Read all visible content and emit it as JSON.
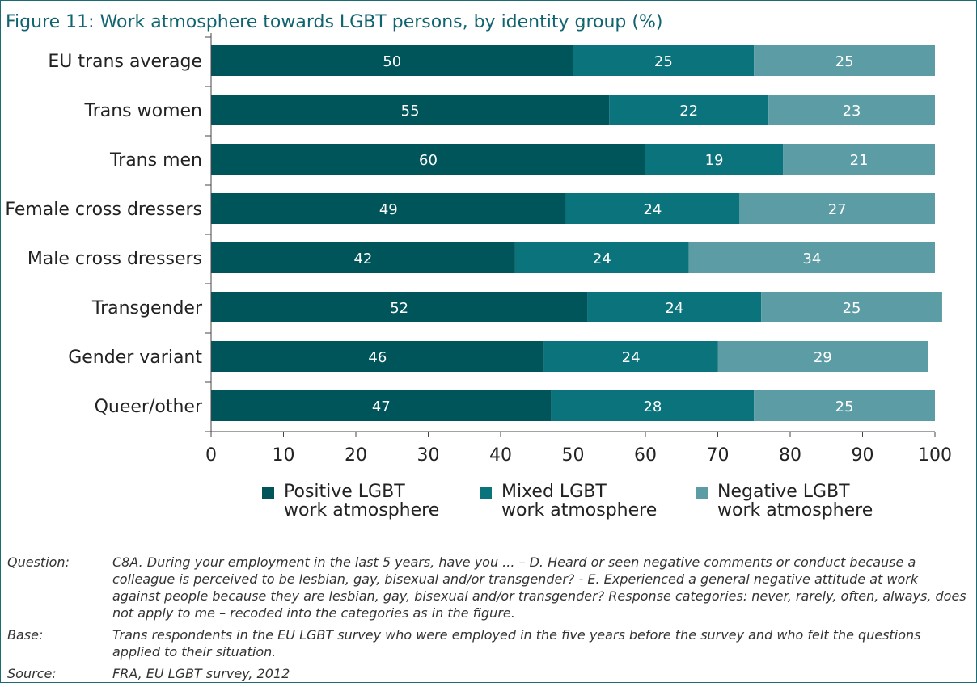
{
  "figure": {
    "title": "Figure 11:  Work atmosphere towards LGBT persons, by identity group (%)"
  },
  "chart_data": {
    "type": "bar",
    "orientation": "horizontal",
    "stacked": true,
    "title": "Figure 11:  Work atmosphere towards LGBT persons, by identity group (%)",
    "categories": [
      "EU trans average",
      "Trans women",
      "Trans men",
      "Female cross dressers",
      "Male cross dressers",
      "Transgender",
      "Gender variant",
      "Queer/other"
    ],
    "series": [
      {
        "name": "Positive LGBT\nwork atmosphere",
        "color": "#00555b",
        "values": [
          50,
          55,
          60,
          49,
          42,
          52,
          46,
          47
        ]
      },
      {
        "name": "Mixed LGBT\nwork atmosphere",
        "color": "#0a737c",
        "values": [
          25,
          22,
          19,
          24,
          24,
          24,
          24,
          28
        ]
      },
      {
        "name": "Negative LGBT\nwork atmosphere",
        "color": "#5c9da5",
        "values": [
          25,
          23,
          21,
          27,
          34,
          25,
          29,
          25
        ]
      }
    ],
    "xlim": [
      0,
      100
    ],
    "xticks": [
      0,
      10,
      20,
      30,
      40,
      50,
      60,
      70,
      80,
      90,
      100
    ],
    "grid": false,
    "legend_position": "bottom"
  },
  "notes": [
    {
      "key": "Question:",
      "text": "C8A. During your employment in the last 5 years, have you ... – D. Heard or seen negative comments or conduct because a colleague is perceived to be lesbian, gay, bisexual and/or transgender? - E. Experienced a general negative attitude at work against people because they are lesbian, gay, bisexual and/or transgender? Response categories: never, rarely, often, always, does not apply to me – recoded into the categories as in the figure."
    },
    {
      "key": "Base:",
      "text": "Trans respondents in the EU LGBT survey who were employed in the five years before the survey and who felt the questions applied to their situation."
    },
    {
      "key": "Source:",
      "text": "FRA, EU LGBT survey, 2012"
    }
  ]
}
